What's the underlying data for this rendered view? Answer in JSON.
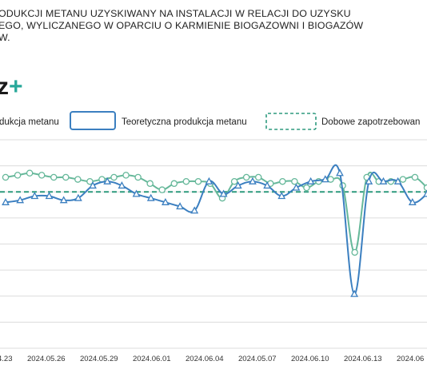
{
  "title_lines": [
    "ODUKCJI METANU UZYSKIWANY NA INSTALACJI W RELACJI DO UZYSKU",
    "EGO, WYLICZANEGO W OPARCIU O KARMIENIE BIOGAZOWNI I BIOGAZÓW",
    "W."
  ],
  "logo": {
    "text": "z",
    "plus": "+"
  },
  "colors": {
    "actual": "#5aa8d6",
    "theoretical": "#3b7fc0",
    "demand": "#2e9a7e",
    "actual_line": "#66b89a"
  },
  "chart_data": {
    "type": "line",
    "title": "",
    "legend": [
      {
        "name": "dukcja metanu",
        "style": "line-circle",
        "color": "#66b89a"
      },
      {
        "name": "Teoretyczna produkcja metanu",
        "style": "line-triangle",
        "color": "#3b7fc0"
      },
      {
        "name": "Dobowe zapotrzebowan",
        "style": "dashed",
        "color": "#2e9a7e"
      }
    ],
    "legend_placement": "top",
    "x_ticks": [
      "4.23",
      "2024.05.26",
      "2024.05.29",
      "2024.06.01",
      "2024.06.04",
      "2024.05.07",
      "2024.06.10",
      "2024.06.13",
      "2024.06"
    ],
    "ylim": [
      0,
      100
    ],
    "grid": true,
    "series": [
      {
        "name": "dukcja metanu",
        "marker": "circle",
        "values": [
          82,
          83,
          84,
          83,
          82,
          82,
          81,
          80,
          81,
          82,
          83,
          82,
          79,
          76,
          79,
          80,
          80,
          79,
          72,
          80,
          82,
          82,
          79,
          80,
          80,
          77,
          80,
          81,
          78,
          46,
          82,
          80,
          80,
          81,
          82,
          77
        ]
      },
      {
        "name": "Teoretyczna produkcja metanu",
        "marker": "triangle",
        "values": [
          70,
          71,
          73,
          73,
          71,
          72,
          78,
          80,
          78,
          74,
          72,
          70,
          68,
          66,
          80,
          74,
          78,
          80,
          78,
          73,
          77,
          80,
          81,
          84,
          26,
          80,
          80,
          80,
          70,
          74
        ]
      },
      {
        "name": "Dobowe zapotrzebowan",
        "marker": "none",
        "constant": 75
      }
    ]
  }
}
